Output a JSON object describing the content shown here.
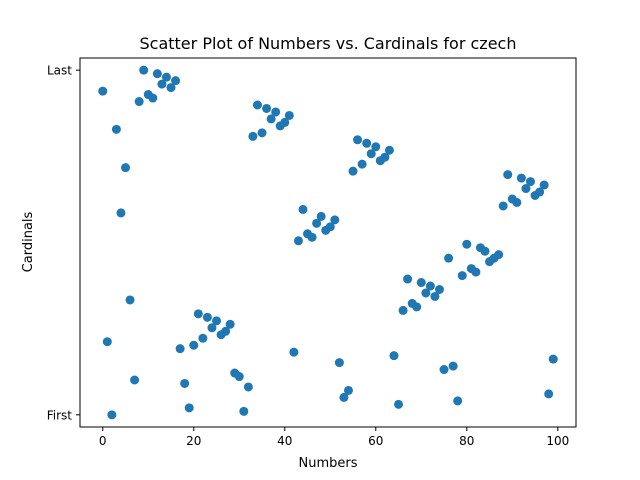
{
  "chart_data": {
    "type": "scatter",
    "title": "Scatter Plot of Numbers vs. Cardinals for czech",
    "xlabel": "Numbers",
    "ylabel": "Cardinals",
    "xlim": [
      -5,
      104
    ],
    "ylim": [
      -3.5,
      102.5
    ],
    "xticks": [
      0,
      20,
      40,
      60,
      80,
      100
    ],
    "yticks": [
      {
        "value": 0,
        "label": "First"
      },
      {
        "value": 99,
        "label": "Last"
      }
    ],
    "grid": false,
    "point_color": "#1f77b4",
    "points": [
      {
        "x": 0,
        "y": 93
      },
      {
        "x": 1,
        "y": 21
      },
      {
        "x": 2,
        "y": 0
      },
      {
        "x": 3,
        "y": 82
      },
      {
        "x": 4,
        "y": 58
      },
      {
        "x": 5,
        "y": 71
      },
      {
        "x": 6,
        "y": 33
      },
      {
        "x": 7,
        "y": 10
      },
      {
        "x": 8,
        "y": 90
      },
      {
        "x": 9,
        "y": 99
      },
      {
        "x": 10,
        "y": 92
      },
      {
        "x": 11,
        "y": 91
      },
      {
        "x": 12,
        "y": 98
      },
      {
        "x": 13,
        "y": 95
      },
      {
        "x": 14,
        "y": 97
      },
      {
        "x": 15,
        "y": 94
      },
      {
        "x": 16,
        "y": 96
      },
      {
        "x": 17,
        "y": 19
      },
      {
        "x": 18,
        "y": 9
      },
      {
        "x": 19,
        "y": 2
      },
      {
        "x": 20,
        "y": 20
      },
      {
        "x": 21,
        "y": 29
      },
      {
        "x": 22,
        "y": 22
      },
      {
        "x": 23,
        "y": 28
      },
      {
        "x": 24,
        "y": 25
      },
      {
        "x": 25,
        "y": 27
      },
      {
        "x": 26,
        "y": 23
      },
      {
        "x": 27,
        "y": 24
      },
      {
        "x": 28,
        "y": 26
      },
      {
        "x": 29,
        "y": 12
      },
      {
        "x": 30,
        "y": 11
      },
      {
        "x": 31,
        "y": 1
      },
      {
        "x": 32,
        "y": 8
      },
      {
        "x": 33,
        "y": 80
      },
      {
        "x": 34,
        "y": 89
      },
      {
        "x": 35,
        "y": 81
      },
      {
        "x": 36,
        "y": 88
      },
      {
        "x": 37,
        "y": 85
      },
      {
        "x": 38,
        "y": 87
      },
      {
        "x": 39,
        "y": 83
      },
      {
        "x": 40,
        "y": 84
      },
      {
        "x": 41,
        "y": 86
      },
      {
        "x": 42,
        "y": 18
      },
      {
        "x": 43,
        "y": 50
      },
      {
        "x": 44,
        "y": 59
      },
      {
        "x": 45,
        "y": 52
      },
      {
        "x": 46,
        "y": 51
      },
      {
        "x": 47,
        "y": 55
      },
      {
        "x": 48,
        "y": 57
      },
      {
        "x": 49,
        "y": 53
      },
      {
        "x": 50,
        "y": 54
      },
      {
        "x": 51,
        "y": 56
      },
      {
        "x": 52,
        "y": 15
      },
      {
        "x": 53,
        "y": 5
      },
      {
        "x": 54,
        "y": 7
      },
      {
        "x": 55,
        "y": 70
      },
      {
        "x": 56,
        "y": 79
      },
      {
        "x": 57,
        "y": 72
      },
      {
        "x": 58,
        "y": 78
      },
      {
        "x": 59,
        "y": 75
      },
      {
        "x": 60,
        "y": 77
      },
      {
        "x": 61,
        "y": 73
      },
      {
        "x": 62,
        "y": 74
      },
      {
        "x": 63,
        "y": 76
      },
      {
        "x": 64,
        "y": 17
      },
      {
        "x": 65,
        "y": 3
      },
      {
        "x": 66,
        "y": 30
      },
      {
        "x": 67,
        "y": 39
      },
      {
        "x": 68,
        "y": 32
      },
      {
        "x": 69,
        "y": 31
      },
      {
        "x": 70,
        "y": 38
      },
      {
        "x": 71,
        "y": 35
      },
      {
        "x": 72,
        "y": 37
      },
      {
        "x": 73,
        "y": 34
      },
      {
        "x": 74,
        "y": 36
      },
      {
        "x": 75,
        "y": 13
      },
      {
        "x": 76,
        "y": 45
      },
      {
        "x": 77,
        "y": 14
      },
      {
        "x": 78,
        "y": 4
      },
      {
        "x": 79,
        "y": 40
      },
      {
        "x": 80,
        "y": 49
      },
      {
        "x": 81,
        "y": 42
      },
      {
        "x": 82,
        "y": 41
      },
      {
        "x": 83,
        "y": 48
      },
      {
        "x": 84,
        "y": 47
      },
      {
        "x": 85,
        "y": 44
      },
      {
        "x": 86,
        "y": 45
      },
      {
        "x": 87,
        "y": 46
      },
      {
        "x": 88,
        "y": 60
      },
      {
        "x": 89,
        "y": 69
      },
      {
        "x": 90,
        "y": 62
      },
      {
        "x": 91,
        "y": 61
      },
      {
        "x": 92,
        "y": 68
      },
      {
        "x": 93,
        "y": 65
      },
      {
        "x": 94,
        "y": 67
      },
      {
        "x": 95,
        "y": 63
      },
      {
        "x": 96,
        "y": 64
      },
      {
        "x": 97,
        "y": 66
      },
      {
        "x": 98,
        "y": 6
      },
      {
        "x": 99,
        "y": 16
      }
    ]
  }
}
